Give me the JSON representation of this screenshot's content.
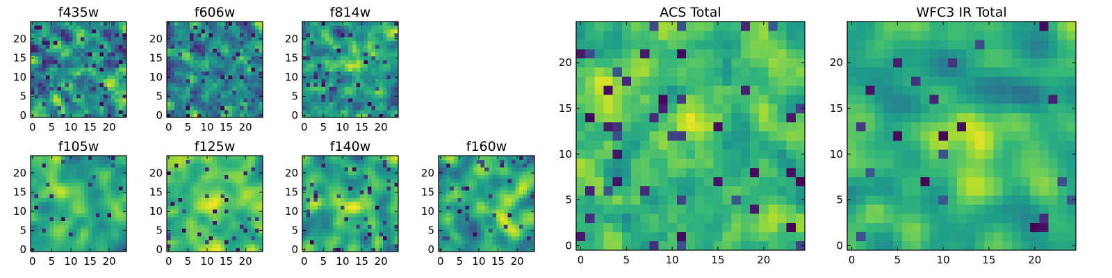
{
  "chart_data": [
    {
      "type": "heatmap",
      "title": "f435w",
      "grid_size": 25,
      "colormap": "viridis",
      "xticks": [
        "0",
        "5",
        "10",
        "15",
        "20"
      ],
      "yticks": [
        "0",
        "5",
        "10",
        "15",
        "20"
      ],
      "xlim": [
        0,
        24
      ],
      "ylim": [
        0,
        24
      ],
      "brightness": 0.5,
      "noise": 0.55,
      "corr": 1,
      "cold_fraction": 0.1,
      "blobs": [],
      "seed": 11
    },
    {
      "type": "heatmap",
      "title": "f606w",
      "grid_size": 25,
      "colormap": "viridis",
      "xticks": [
        "0",
        "5",
        "10",
        "15",
        "20"
      ],
      "yticks": [
        "0",
        "5",
        "10",
        "15",
        "20"
      ],
      "xlim": [
        0,
        24
      ],
      "ylim": [
        0,
        24
      ],
      "brightness": 0.52,
      "noise": 0.5,
      "corr": 1,
      "cold_fraction": 0.08,
      "blobs": [],
      "seed": 23
    },
    {
      "type": "heatmap",
      "title": "f814w",
      "grid_size": 25,
      "colormap": "viridis",
      "xticks": [
        "0",
        "5",
        "10",
        "15",
        "20"
      ],
      "yticks": [
        "0",
        "5",
        "10",
        "15",
        "20"
      ],
      "xlim": [
        0,
        24
      ],
      "ylim": [
        0,
        24
      ],
      "brightness": 0.55,
      "noise": 0.5,
      "corr": 1,
      "cold_fraction": 0.07,
      "blobs": [
        [
          13,
          13,
          0.2
        ]
      ],
      "seed": 37
    },
    {
      "type": "heatmap",
      "title": "f105w",
      "grid_size": 25,
      "colormap": "viridis",
      "xticks": [
        "0",
        "5",
        "10",
        "15",
        "20"
      ],
      "yticks": [
        "0",
        "5",
        "10",
        "15",
        "20"
      ],
      "xlim": [
        0,
        24
      ],
      "ylim": [
        0,
        24
      ],
      "brightness": 0.6,
      "noise": 0.4,
      "corr": 2,
      "cold_fraction": 0.04,
      "blobs": [
        [
          12,
          12,
          0.2
        ]
      ],
      "seed": 41
    },
    {
      "type": "heatmap",
      "title": "f125w",
      "grid_size": 25,
      "colormap": "viridis",
      "xticks": [
        "0",
        "5",
        "10",
        "15",
        "20"
      ],
      "yticks": [
        "0",
        "5",
        "10",
        "15",
        "20"
      ],
      "xlim": [
        0,
        24
      ],
      "ylim": [
        0,
        24
      ],
      "brightness": 0.7,
      "noise": 0.36,
      "corr": 2,
      "cold_fraction": 0.04,
      "blobs": [
        [
          12,
          12,
          0.15
        ]
      ],
      "seed": 53
    },
    {
      "type": "heatmap",
      "title": "f140w",
      "grid_size": 25,
      "colormap": "viridis",
      "xticks": [
        "0",
        "5",
        "10",
        "15",
        "20"
      ],
      "yticks": [
        "0",
        "5",
        "10",
        "15",
        "20"
      ],
      "xlim": [
        0,
        24
      ],
      "ylim": [
        0,
        24
      ],
      "brightness": 0.62,
      "noise": 0.42,
      "corr": 2,
      "cold_fraction": 0.06,
      "blobs": [
        [
          13,
          12,
          0.15
        ]
      ],
      "seed": 67
    },
    {
      "type": "heatmap",
      "title": "f160w",
      "grid_size": 25,
      "colormap": "viridis",
      "xticks": [
        "0",
        "5",
        "10",
        "15",
        "20"
      ],
      "yticks": [
        "0",
        "5",
        "10",
        "15",
        "20"
      ],
      "xlim": [
        0,
        24
      ],
      "ylim": [
        0,
        24
      ],
      "brightness": 0.6,
      "noise": 0.42,
      "corr": 2,
      "cold_fraction": 0.05,
      "blobs": [
        [
          14,
          11,
          0.22
        ]
      ],
      "seed": 79
    },
    {
      "type": "heatmap",
      "title": "ACS Total",
      "grid_size": 25,
      "colormap": "viridis",
      "xticks": [
        "0",
        "5",
        "10",
        "15",
        "20"
      ],
      "yticks": [
        "0",
        "5",
        "10",
        "15",
        "20"
      ],
      "xlim": [
        0,
        24
      ],
      "ylim": [
        0,
        24
      ],
      "brightness": 0.7,
      "noise": 0.3,
      "corr": 1,
      "cold_fraction": 0.06,
      "blobs": [
        [
          13,
          13,
          0.22
        ]
      ],
      "seed": 83
    },
    {
      "type": "heatmap",
      "title": "WFC3 IR Total",
      "grid_size": 25,
      "colormap": "viridis",
      "xticks": [
        "0",
        "5",
        "10",
        "15",
        "20"
      ],
      "yticks": [
        "0",
        "5",
        "10",
        "15",
        "20"
      ],
      "xlim": [
        0,
        24
      ],
      "ylim": [
        0,
        24
      ],
      "brightness": 0.62,
      "noise": 0.3,
      "corr": 2,
      "cold_fraction": 0.04,
      "blobs": [
        [
          13,
          13,
          0.3
        ],
        [
          15,
          8,
          0.2
        ]
      ],
      "seed": 97
    }
  ],
  "colors": {
    "background": "#ffffff",
    "axis": "#000000"
  }
}
